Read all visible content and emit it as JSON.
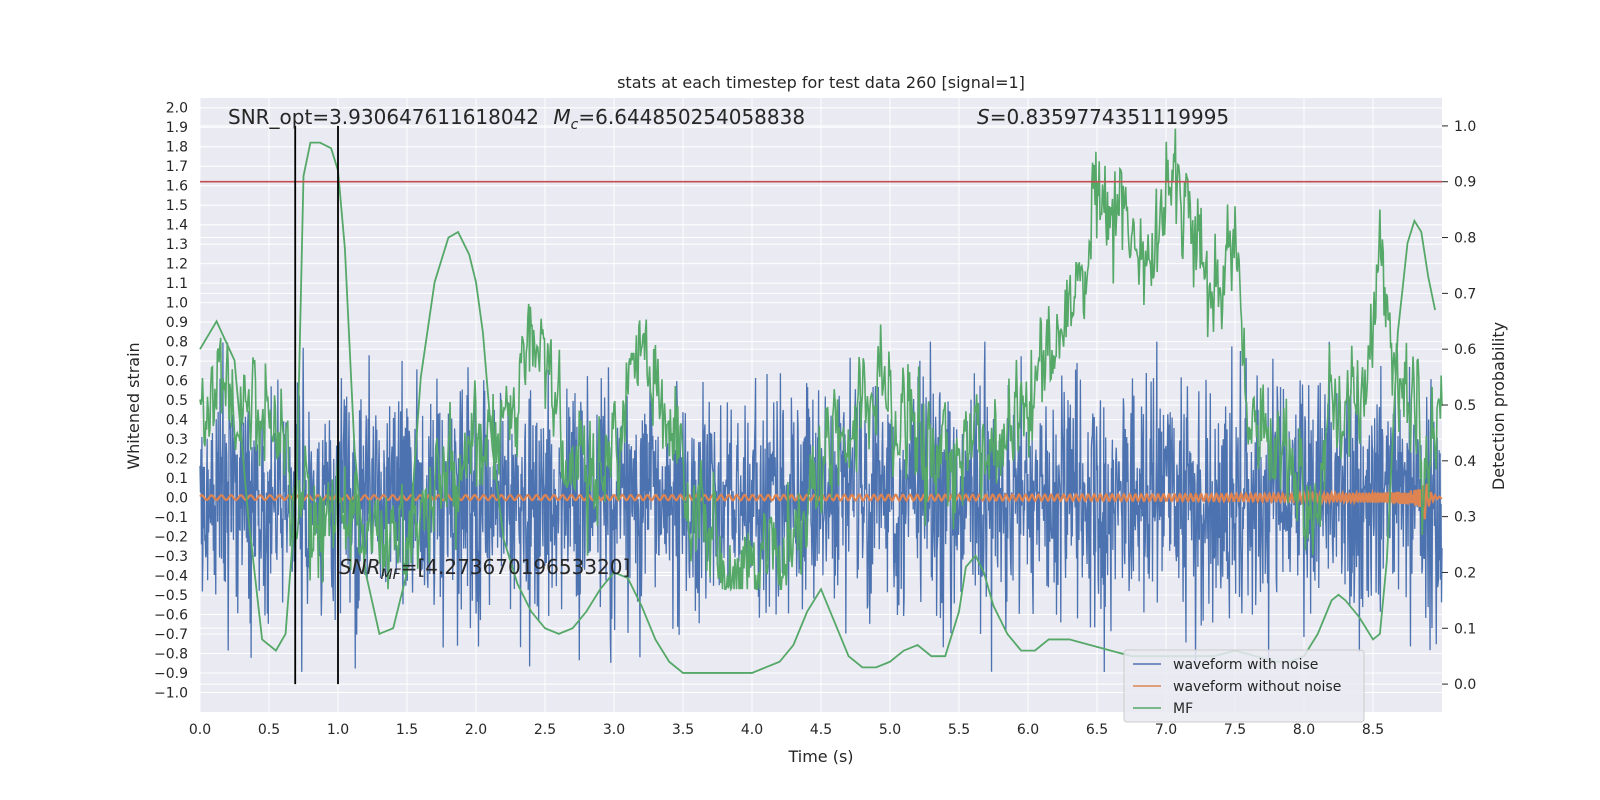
{
  "chart_data": {
    "type": "line",
    "title": "stats at each timestep for test data 260 [signal=1]",
    "xlabel": "Time (s)",
    "ylabel_left": "Whitened strain",
    "ylabel_right": "Detection probability",
    "xlim": [
      0.0,
      9.0
    ],
    "ylim_left": [
      -1.1,
      2.05
    ],
    "ylim_right": [
      -0.05,
      1.05
    ],
    "x_ticks": [
      "0.0",
      "0.5",
      "1.0",
      "1.5",
      "2.0",
      "2.5",
      "3.0",
      "3.5",
      "4.0",
      "4.5",
      "5.0",
      "5.5",
      "6.0",
      "6.5",
      "7.0",
      "7.5",
      "8.0",
      "8.5"
    ],
    "y_left_ticks": [
      "2.0",
      "1.9",
      "1.8",
      "1.7",
      "1.6",
      "1.5",
      "1.4",
      "1.3",
      "1.2",
      "1.1",
      "1.0",
      "0.9",
      "0.8",
      "0.7",
      "0.6",
      "0.5",
      "0.4",
      "0.3",
      "0.2",
      "0.1",
      "0.0",
      "−0.1",
      "−0.2",
      "−0.3",
      "−0.4",
      "−0.5",
      "−0.6",
      "−0.7",
      "−0.8",
      "−0.9",
      "−1.0"
    ],
    "y_right_ticks": [
      "1.0",
      "0.9",
      "0.8",
      "0.7",
      "0.6",
      "0.5",
      "0.4",
      "0.3",
      "0.2",
      "0.1",
      "0.0"
    ],
    "grid": true,
    "legend_position": "lower-right",
    "colors": {
      "noise": "#4c72b0",
      "clean": "#dd8452",
      "prob": "#55a868",
      "mf": "#55a868",
      "threshold": "#c44e52",
      "markers": "#000000",
      "background": "#eaeaf2",
      "grid": "#ffffff"
    },
    "threshold": 0.9,
    "vlines": [
      0.69,
      1.0
    ],
    "annotations": {
      "snr_opt": "SNR_opt=3.930647611618042",
      "mc_prefix": "M",
      "mc_sub": "c",
      "mc_value": "=6.644850254058838",
      "s_prefix": "S",
      "s_value": "=0.8359774351119995",
      "snr_mf_prefix": "SNR",
      "snr_mf_sub": "MF",
      "snr_mf_value": "=[4.27367019653320]"
    },
    "legend": [
      "waveform with noise",
      "waveform without noise",
      "MF"
    ],
    "series": [
      {
        "name": "waveform with noise",
        "axis": "left",
        "noise_band": {
          "x_end": 9.0,
          "typical_min": -0.45,
          "typical_max": 0.45,
          "peak_min": -0.9,
          "peak_max": 0.8
        }
      },
      {
        "name": "waveform without noise",
        "axis": "left",
        "chirp": {
          "x_end": 9.0,
          "end_time": 8.87,
          "start_amp": 0.012,
          "peak_amp": 0.13
        }
      },
      {
        "name": "MF",
        "axis": "right",
        "x": [
          0.0,
          0.12,
          0.25,
          0.35,
          0.45,
          0.55,
          0.62,
          0.7,
          0.75,
          0.8,
          0.87,
          0.95,
          1.0,
          1.05,
          1.12,
          1.2,
          1.3,
          1.4,
          1.5,
          1.6,
          1.7,
          1.8,
          1.87,
          1.95,
          2.0,
          2.05,
          2.12,
          2.2,
          2.3,
          2.4,
          2.5,
          2.6,
          2.7,
          2.8,
          2.9,
          3.0,
          3.1,
          3.2,
          3.3,
          3.4,
          3.5,
          3.6,
          3.7,
          3.8,
          3.9,
          4.0,
          4.1,
          4.2,
          4.3,
          4.4,
          4.5,
          4.6,
          4.7,
          4.8,
          4.9,
          5.0,
          5.1,
          5.2,
          5.3,
          5.4,
          5.5,
          5.55,
          5.62,
          5.68,
          5.75,
          5.85,
          5.95,
          6.05,
          6.15,
          6.3,
          6.45,
          6.6,
          6.75,
          6.9,
          7.05,
          7.2,
          7.35,
          7.5,
          7.65,
          7.8,
          7.9,
          8.0,
          8.1,
          8.2,
          8.25,
          8.3,
          8.4,
          8.5,
          8.55,
          8.6,
          8.68,
          8.75,
          8.8,
          8.85,
          8.9,
          8.95
        ],
        "y": [
          0.6,
          0.65,
          0.58,
          0.3,
          0.08,
          0.06,
          0.09,
          0.35,
          0.91,
          0.97,
          0.97,
          0.96,
          0.92,
          0.78,
          0.42,
          0.2,
          0.09,
          0.1,
          0.2,
          0.55,
          0.72,
          0.8,
          0.81,
          0.77,
          0.72,
          0.63,
          0.42,
          0.26,
          0.18,
          0.13,
          0.1,
          0.09,
          0.1,
          0.13,
          0.17,
          0.2,
          0.19,
          0.14,
          0.08,
          0.04,
          0.02,
          0.02,
          0.02,
          0.02,
          0.02,
          0.02,
          0.03,
          0.04,
          0.07,
          0.13,
          0.17,
          0.11,
          0.05,
          0.03,
          0.03,
          0.04,
          0.06,
          0.07,
          0.05,
          0.05,
          0.13,
          0.21,
          0.23,
          0.2,
          0.14,
          0.09,
          0.06,
          0.06,
          0.08,
          0.08,
          0.07,
          0.06,
          0.05,
          0.05,
          0.05,
          0.05,
          0.05,
          0.06,
          0.05,
          0.04,
          0.04,
          0.05,
          0.09,
          0.15,
          0.16,
          0.15,
          0.12,
          0.08,
          0.09,
          0.22,
          0.63,
          0.79,
          0.83,
          0.81,
          0.73,
          0.67
        ]
      },
      {
        "name": "",
        "axis": "right",
        "random_walk": {
          "anchors_x": [
            0.0,
            0.3,
            0.5,
            0.7,
            0.9,
            1.1,
            1.3,
            1.5,
            1.8,
            2.05,
            2.3,
            2.5,
            2.7,
            3.0,
            3.2,
            3.4,
            3.6,
            3.8,
            4.0,
            4.3,
            4.6,
            4.9,
            5.1,
            5.3,
            5.6,
            5.9,
            6.1,
            6.3,
            6.5,
            6.7,
            6.9,
            7.1,
            7.3,
            7.5,
            7.65,
            7.85,
            8.05,
            8.25,
            8.45,
            8.55,
            8.65,
            8.75,
            8.85,
            9.0
          ],
          "anchors_y": [
            0.5,
            0.53,
            0.45,
            0.33,
            0.3,
            0.32,
            0.28,
            0.27,
            0.35,
            0.43,
            0.55,
            0.58,
            0.38,
            0.4,
            0.58,
            0.45,
            0.32,
            0.22,
            0.21,
            0.28,
            0.42,
            0.52,
            0.46,
            0.43,
            0.4,
            0.47,
            0.56,
            0.66,
            0.86,
            0.82,
            0.79,
            0.9,
            0.72,
            0.75,
            0.42,
            0.4,
            0.32,
            0.48,
            0.56,
            0.8,
            0.6,
            0.48,
            0.43,
            0.45
          ],
          "noise_amp": 0.09
        }
      }
    ]
  }
}
